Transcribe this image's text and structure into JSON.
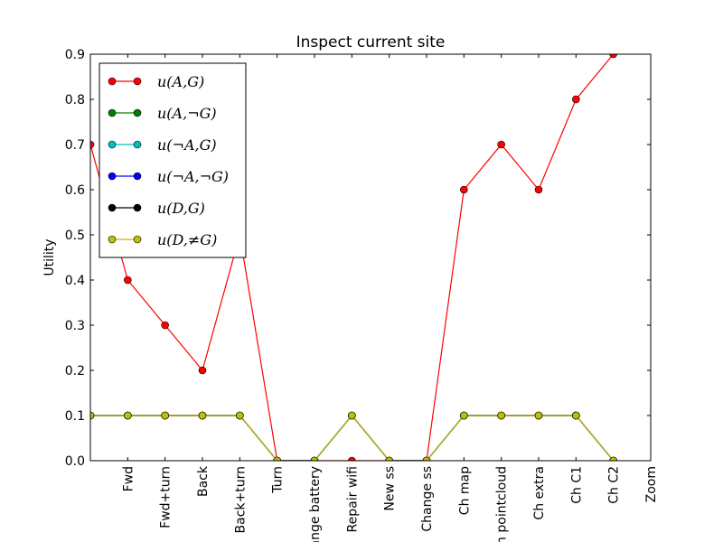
{
  "chart_data": {
    "type": "line",
    "title": "Inspect current site",
    "y_label": "Utility",
    "categories": [
      null,
      "Fwd",
      "Fwd+turn",
      "Back",
      "Back+turn",
      "Turn",
      "Change battery",
      "Repair wifi",
      "New ss",
      "Change ss",
      "Ch map",
      "Ch pointcloud",
      "Ch extra",
      "Ch C1",
      "Ch C2",
      "Zoom"
    ],
    "ylim": [
      0,
      0.9
    ],
    "yticks": [
      {
        "value": 0,
        "label": "0.0"
      },
      0.1,
      0.2,
      0.3,
      0.4,
      0.5,
      0.6,
      0.7,
      0.8,
      0.9
    ],
    "legend": "upper left",
    "series": [
      {
        "name": "u(A,G)",
        "color": "#ff0000",
        "values": [
          0.7,
          0.4,
          0.3,
          0.2,
          0.5,
          0,
          0,
          0,
          0,
          0,
          0.6,
          0.7,
          0.6,
          0.8,
          0.9,
          null
        ]
      },
      {
        "name": "u(A,¬G)",
        "color": "#008000",
        "values": [
          0.1,
          0.1,
          0.1,
          0.1,
          0.1,
          0,
          0,
          0.1,
          0,
          0,
          0.1,
          0.1,
          0.1,
          0.1,
          0,
          null
        ]
      },
      {
        "name": "u(¬A,G)",
        "color": "#00bfbf",
        "values": [
          0.1,
          0.1,
          0.1,
          0.1,
          0.1,
          0,
          0,
          0.1,
          0,
          0,
          0.1,
          0.1,
          0.1,
          0.1,
          0,
          null
        ]
      },
      {
        "name": "u(¬A,¬G)",
        "color": "#0000ff",
        "values": [
          0.1,
          0.1,
          0.1,
          0.1,
          0.1,
          0,
          0,
          0.1,
          0,
          0,
          0.1,
          0.1,
          0.1,
          0.1,
          0,
          null
        ]
      },
      {
        "name": "u(D,G)",
        "color": "#000000",
        "values": [
          0.1,
          0.1,
          0.1,
          0.1,
          0.1,
          0,
          0,
          0.1,
          0,
          0,
          0.1,
          0.1,
          0.1,
          0.1,
          0,
          null
        ]
      },
      {
        "name": "u(D,≠G)",
        "color": "#bfbf00",
        "values": [
          0.1,
          0.1,
          0.1,
          0.1,
          0.1,
          0,
          0,
          0.1,
          0,
          0,
          0.1,
          0.1,
          0.1,
          0.1,
          0,
          null
        ]
      }
    ]
  }
}
